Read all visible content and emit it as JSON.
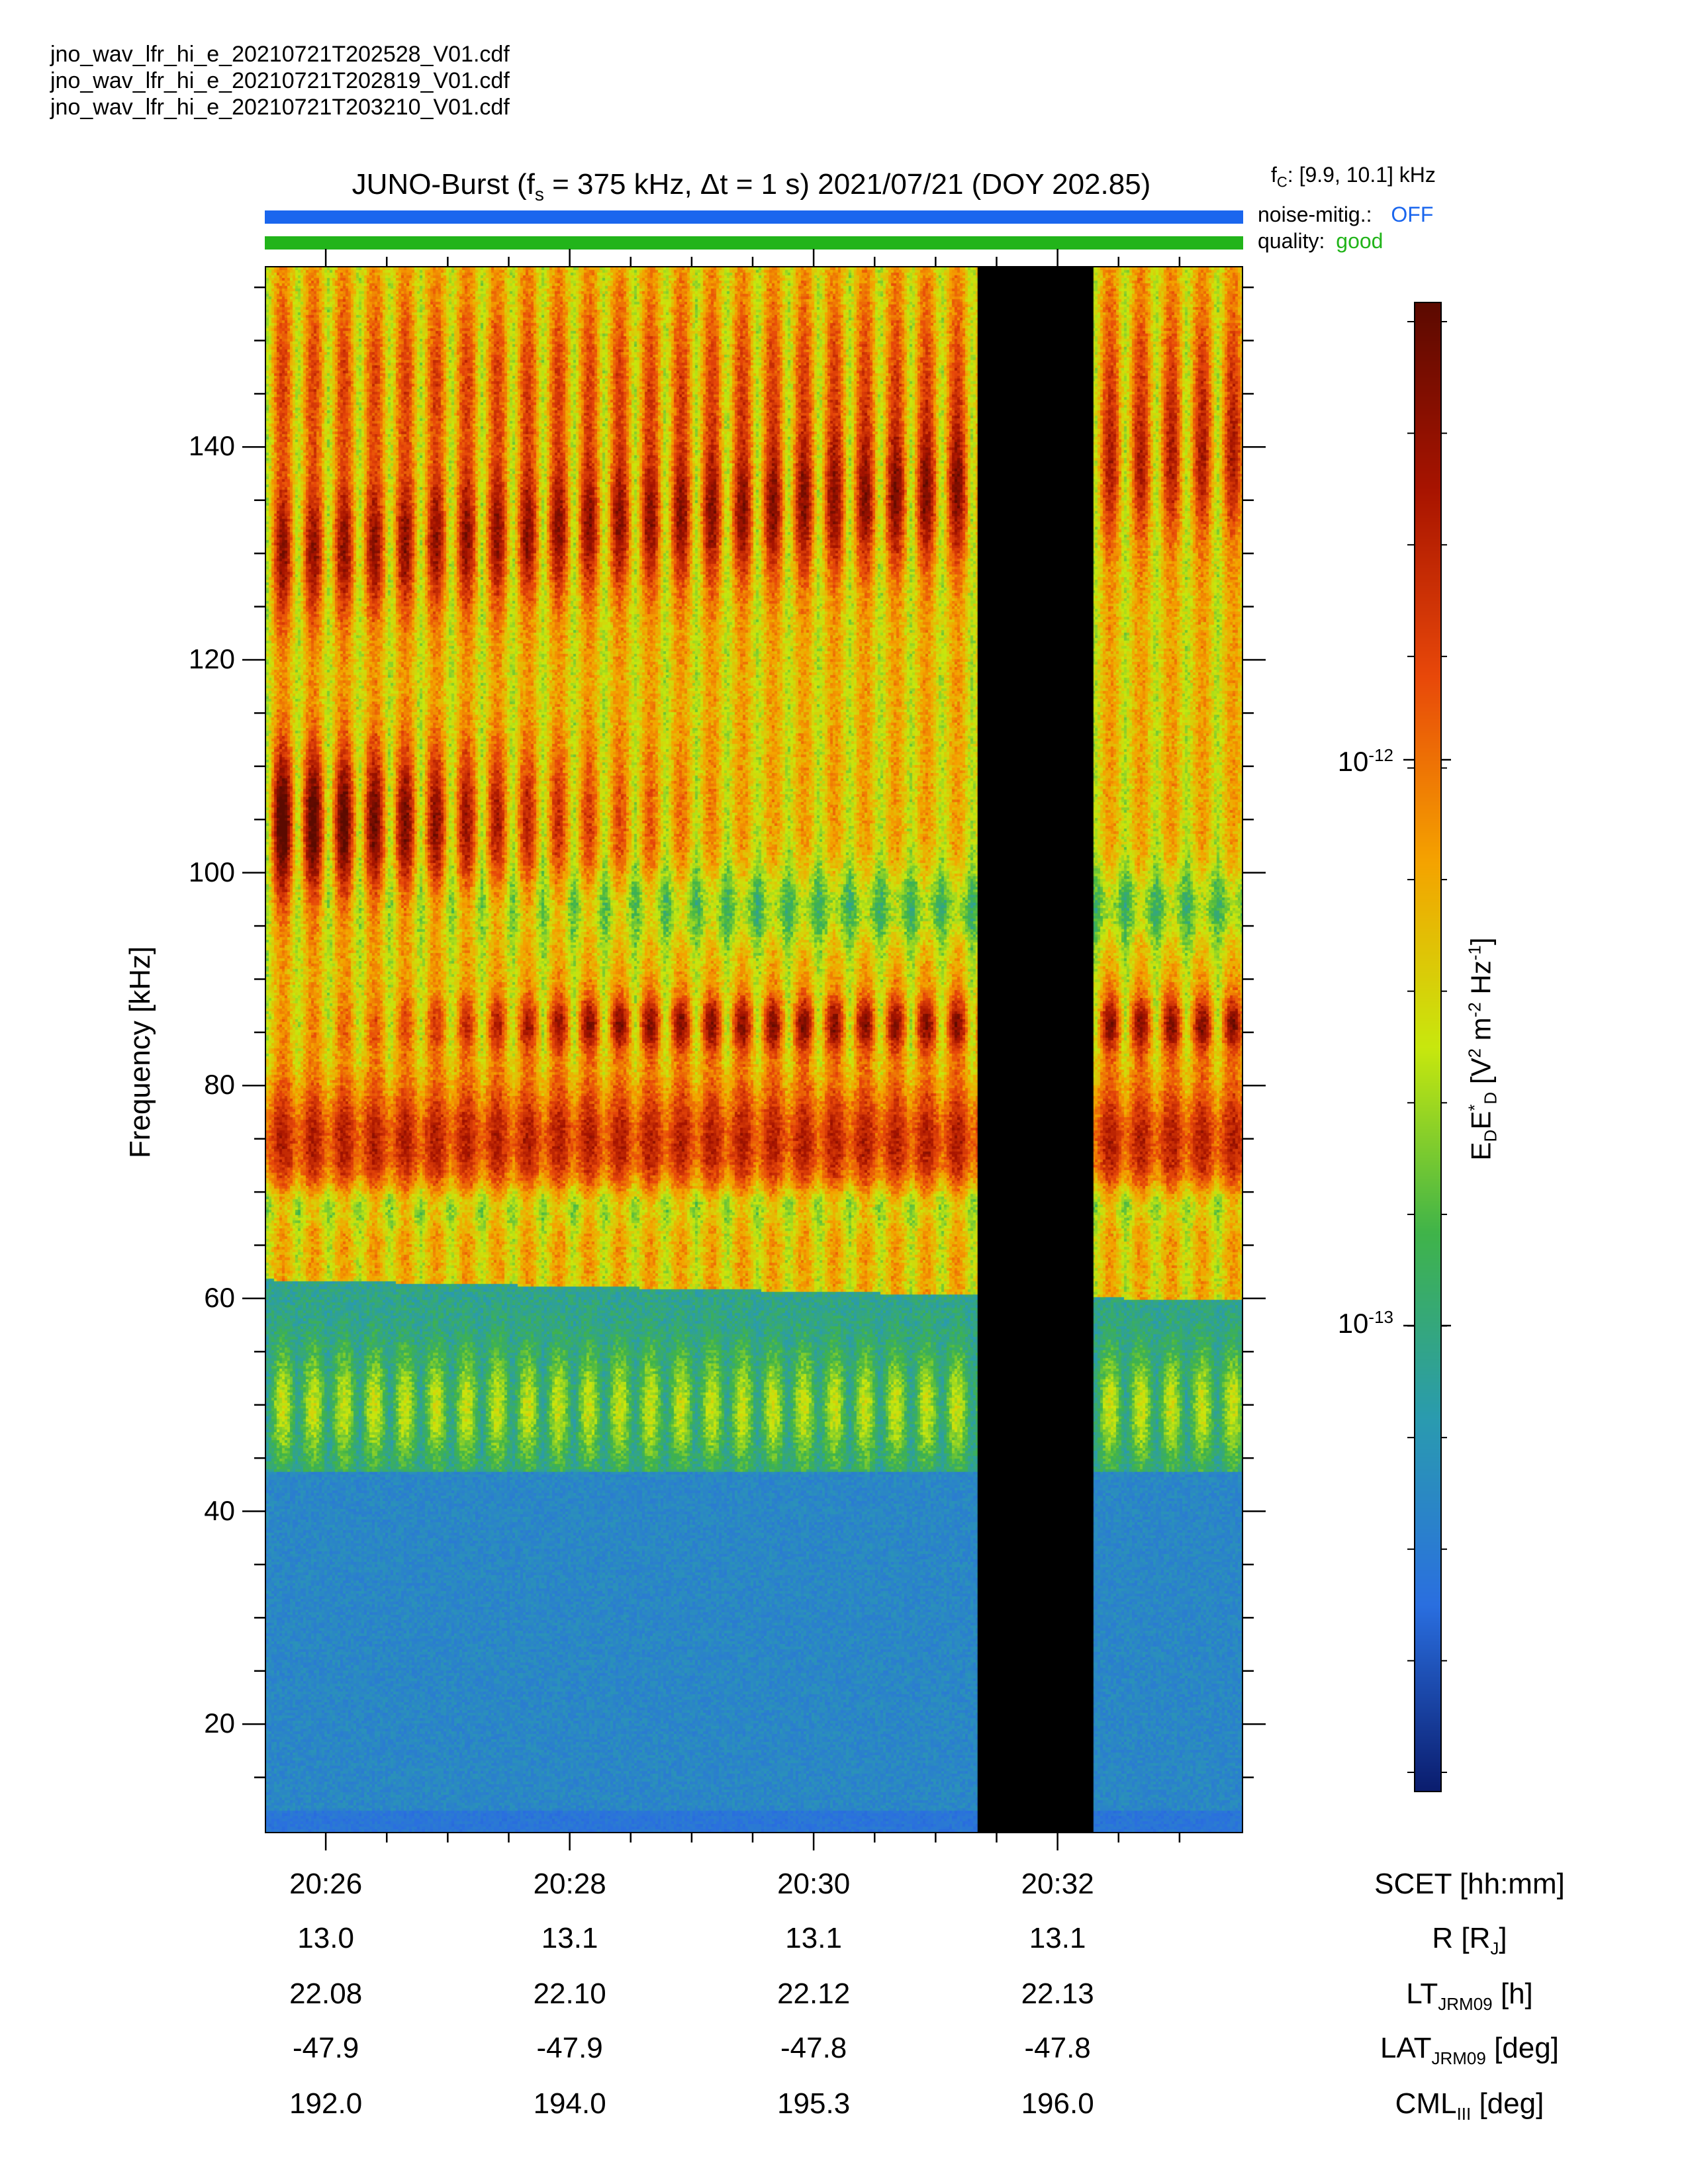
{
  "files": [
    "jno_wav_lfr_hi_e_20210721T202528_V01.cdf",
    "jno_wav_lfr_hi_e_20210721T202819_V01.cdf",
    "jno_wav_lfr_hi_e_20210721T203210_V01.cdf"
  ],
  "title": {
    "prefix": "JUNO-Burst (f",
    "sub": "s",
    "suffix": " = 375 kHz, Δt = 1 s)  2021/07/21 (DOY 202.85)"
  },
  "fc": {
    "prefix": "f",
    "sub": "C",
    "value": ": [9.9, 10.1] kHz"
  },
  "noise_mitig": {
    "label": "noise-mitig.:",
    "value": "OFF",
    "color": "#1a66ee"
  },
  "quality": {
    "label": "quality:",
    "value": "good",
    "color": "#22b41a"
  },
  "colors": {
    "noise_bar": "#1a66ee",
    "quality_bar": "#22b41a",
    "gap": "#000000"
  },
  "chart_data": {
    "type": "heatmap",
    "ylabel": "Frequency [kHz]",
    "ylim": [
      10,
      157
    ],
    "yticks": [
      20,
      40,
      60,
      80,
      100,
      120,
      140
    ],
    "xlim": [
      "20:25:30",
      "20:33:30"
    ],
    "xticks": [
      "20:26",
      "20:28",
      "20:30",
      "20:32"
    ],
    "x_axis_label": "SCET [hh:mm]",
    "data_gap": [
      "20:31:20",
      "20:32:17"
    ],
    "colorbar": {
      "title": "E_D E*_D [V² m⁻² Hz⁻¹]",
      "scale": "log",
      "ticks": [
        "10^-12",
        "10^-13"
      ],
      "colormap": [
        "#0b1d6e",
        "#2a6fe0",
        "#2a9bb0",
        "#40b44a",
        "#c8e80e",
        "#f5a300",
        "#e8480a",
        "#a81400",
        "#5c0a00"
      ]
    },
    "features": [
      {
        "name": "strong-emission-band",
        "freq_range_khz": [
          100,
          112
        ],
        "time_range": [
          "20:25:30",
          "20:28:30"
        ]
      },
      {
        "name": "narrow-band",
        "freq_khz": 86,
        "time_range": [
          "20:26:30",
          "20:33:30"
        ]
      },
      {
        "name": "band",
        "freq_range_khz": [
          125,
          135
        ],
        "time_range": [
          "20:25:30",
          "20:31:20"
        ]
      },
      {
        "name": "band",
        "freq_range_khz": [
          70,
          80
        ],
        "time_range": [
          "20:25:30",
          "20:33:30"
        ]
      },
      {
        "name": "lower-cutoff",
        "freq_khz": 62,
        "time_range": [
          "20:25:30",
          "20:33:30"
        ]
      },
      {
        "name": "band",
        "freq_range_khz": [
          45,
          57
        ],
        "time_range": [
          "20:25:30",
          "20:33:30"
        ]
      }
    ]
  },
  "ephemeris": {
    "labels": [
      "SCET [hh:mm]",
      "R [R_J]",
      "LT_JRM09 [h]",
      "LAT_JRM09 [deg]",
      "CML_III [deg]"
    ],
    "rows": {
      "scet": [
        "20:26",
        "20:28",
        "20:30",
        "20:32"
      ],
      "r": [
        "13.0",
        "13.1",
        "13.1",
        "13.1"
      ],
      "lt": [
        "22.08",
        "22.10",
        "22.12",
        "22.13"
      ],
      "lat": [
        "-47.9",
        "-47.9",
        "-47.8",
        "-47.8"
      ],
      "cml": [
        "192.0",
        "194.0",
        "195.3",
        "196.0"
      ]
    }
  },
  "row_names": {
    "r": {
      "main": "R [R",
      "sub": "J",
      "end": "]"
    },
    "lt": {
      "main": "LT",
      "sub": "JRM09",
      "end": " [h]"
    },
    "lat": {
      "main": "LAT",
      "sub": "JRM09",
      "end": " [deg]"
    },
    "cml": {
      "main": "CML",
      "sub": "III",
      "end": " [deg]"
    }
  },
  "colorbar_labels": {
    "t1": {
      "base": "10",
      "exp": "-12"
    },
    "t2": {
      "base": "10",
      "exp": "-13"
    },
    "title": {
      "a": "E",
      "a_sub": "D",
      "b": "E",
      "b_sup": "*",
      "b_sub": "D",
      "c": " [V",
      "c_sup": "2",
      "d": " m",
      "d_sup": "-2",
      "e": " Hz",
      "e_sup": "-1",
      "f": "]"
    }
  }
}
